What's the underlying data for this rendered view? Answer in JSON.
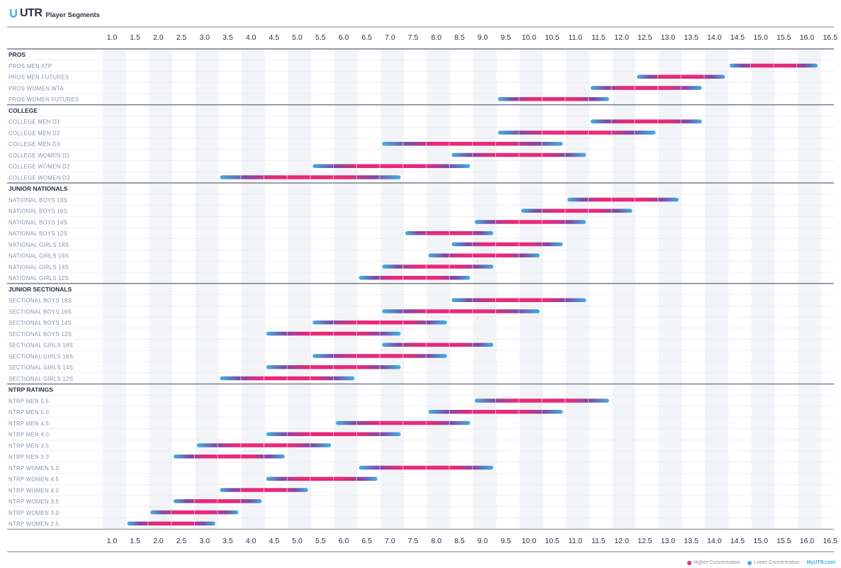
{
  "header": {
    "logo": "UTR",
    "title": "Player Segments"
  },
  "colors": {
    "high": "#e8297a",
    "low": "#3cb3e4",
    "mid": "#7d4aa6",
    "text": "#8a93a6",
    "group": "#2b3142",
    "shade": "#f3f4f7"
  },
  "chart_data": {
    "type": "range-bar",
    "title": "Player Segments",
    "ticks": [
      "1.0",
      "1.5",
      "2.0",
      "2.5",
      "3.0",
      "3.5",
      "4.0",
      "4.5",
      "5.0",
      "5.5",
      "6.0",
      "6.5",
      "7.0",
      "7.5",
      "8.0",
      "8.5",
      "9.0",
      "9.5",
      "10.0",
      "10.5",
      "11.0",
      "11.5",
      "12.0",
      "12.5",
      "13.0",
      "13.5",
      "14.0",
      "14.5",
      "15.0",
      "15.5",
      "16.0",
      "16.5"
    ],
    "xlim": [
      1.0,
      16.5
    ],
    "groups": [
      {
        "name": "PROS",
        "rows": [
          {
            "label": "PROS MEN ATP",
            "start": 14.3,
            "end": 16.2
          },
          {
            "label": "PROS MEN FUTURES",
            "start": 12.3,
            "end": 14.2
          },
          {
            "label": "PROS WOMEN WTA",
            "start": 11.3,
            "end": 13.7
          },
          {
            "label": "PROS WOMEN FUTURES",
            "start": 9.3,
            "end": 11.7
          }
        ]
      },
      {
        "name": "COLLEGE",
        "rows": [
          {
            "label": "COLLEGE MEN D1",
            "start": 11.3,
            "end": 13.7
          },
          {
            "label": "COLLEGE MEN D2",
            "start": 9.3,
            "end": 12.7
          },
          {
            "label": "COLLEGE MEN D3",
            "start": 6.8,
            "end": 10.7
          },
          {
            "label": "COLLEGE WOMEN D1",
            "start": 8.3,
            "end": 11.2
          },
          {
            "label": "COLLEGE WOMEN D2",
            "start": 5.3,
            "end": 8.7
          },
          {
            "label": "COLLEGE WOMEN D3",
            "start": 3.3,
            "end": 7.2
          }
        ]
      },
      {
        "name": "JUNIOR NATIONALS",
        "rows": [
          {
            "label": "NATIONAL BOYS 18S",
            "start": 10.8,
            "end": 13.2
          },
          {
            "label": "NATIONAL BOYS 16S",
            "start": 9.8,
            "end": 12.2
          },
          {
            "label": "NATIONAL BOYS 14S",
            "start": 8.8,
            "end": 11.2
          },
          {
            "label": "NATIONAL BOYS 12S",
            "start": 7.3,
            "end": 9.2
          },
          {
            "label": "NATIONAL GIRLS 18S",
            "start": 8.3,
            "end": 10.7
          },
          {
            "label": "NATIONAL GIRLS 16S",
            "start": 7.8,
            "end": 10.2
          },
          {
            "label": "NATIONAL GIRLS 14S",
            "start": 6.8,
            "end": 9.2
          },
          {
            "label": "NATIONAL GIRLS 12S",
            "start": 6.3,
            "end": 8.7
          }
        ]
      },
      {
        "name": "JUNIOR SECTIONALS",
        "rows": [
          {
            "label": "SECTIONAL BOYS 18S",
            "start": 8.3,
            "end": 11.2
          },
          {
            "label": "SECTIONAL BOYS 16S",
            "start": 6.8,
            "end": 10.2
          },
          {
            "label": "SECTIONAL BOYS 14S",
            "start": 5.3,
            "end": 8.2
          },
          {
            "label": "SECTIONAL BOYS 12S",
            "start": 4.3,
            "end": 7.2
          },
          {
            "label": "SECTIONAL GIRLS 18S",
            "start": 6.8,
            "end": 9.2
          },
          {
            "label": "SECTIONAL GIRLS 16S",
            "start": 5.3,
            "end": 8.2
          },
          {
            "label": "SECTIONAL GIRLS 14S",
            "start": 4.3,
            "end": 7.2
          },
          {
            "label": "SECTIONAL GIRLS 12S",
            "start": 3.3,
            "end": 6.2
          }
        ]
      },
      {
        "name": "NTRP RATINGS",
        "rows": [
          {
            "label": "NTRP MEN 5.5",
            "start": 8.8,
            "end": 11.7
          },
          {
            "label": "NTRP MEN 5.0",
            "start": 7.8,
            "end": 10.7
          },
          {
            "label": "NTRP MEN 4.5",
            "start": 5.8,
            "end": 8.7
          },
          {
            "label": "NTRP MEN 4.0",
            "start": 4.3,
            "end": 7.2
          },
          {
            "label": "NTRP MEN 3.5",
            "start": 2.8,
            "end": 5.7
          },
          {
            "label": "NTRP MEN 3.0",
            "start": 2.3,
            "end": 4.7
          },
          {
            "label": "NTRP WOMEN 5.0",
            "start": 6.3,
            "end": 9.2
          },
          {
            "label": "NTRP WOMEN 4.5",
            "start": 4.3,
            "end": 6.7
          },
          {
            "label": "NTRP WOMEN 4.0",
            "start": 3.3,
            "end": 5.2
          },
          {
            "label": "NTRP WOMEN 3.5",
            "start": 2.3,
            "end": 4.2
          },
          {
            "label": "NTRP WOMEN 3.0",
            "start": 1.8,
            "end": 3.7
          },
          {
            "label": "NTRP WOMEN 2.5",
            "start": 1.3,
            "end": 3.2
          }
        ]
      }
    ],
    "legend": [
      {
        "label": "Higher Concentration",
        "color": "#e8297a"
      },
      {
        "label": "Lower Concentration",
        "color": "#3cb3e4"
      }
    ]
  },
  "footer": {
    "site": "MyUTR.com"
  }
}
